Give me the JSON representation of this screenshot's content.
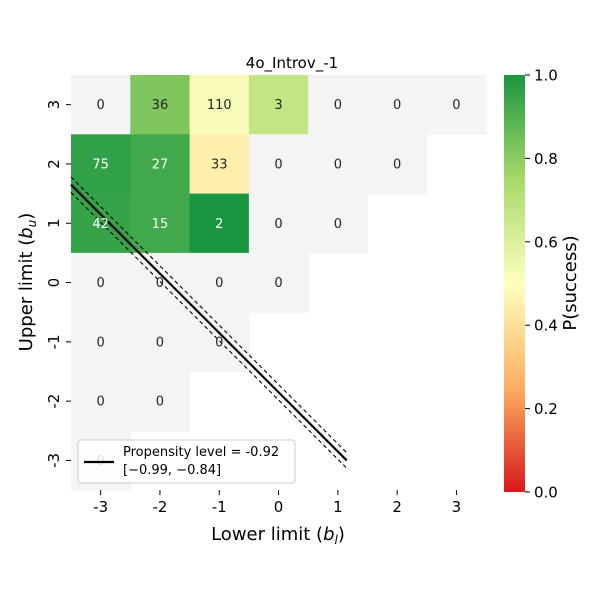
{
  "chart_data": {
    "type": "heatmap",
    "title": "4o_Introv_-1",
    "x_categories": [
      "-3",
      "-2",
      "-1",
      "0",
      "1",
      "2",
      "3"
    ],
    "y_categories": [
      "3",
      "2",
      "1",
      "0",
      "-1",
      "-2",
      "-3"
    ],
    "xlabel_main": "Lower limit (",
    "xlabel_var": "b",
    "xlabel_sub": "l",
    "xlabel_end": ")",
    "ylabel_main": "Upper limit (",
    "ylabel_var": "b",
    "ylabel_sub": "u",
    "ylabel_end": ")",
    "cells": [
      {
        "x": "-3",
        "y": "3",
        "count": "0",
        "p": null
      },
      {
        "x": "-2",
        "y": "3",
        "count": "36",
        "p": 0.82
      },
      {
        "x": "-1",
        "y": "3",
        "count": "110",
        "p": 0.52
      },
      {
        "x": "0",
        "y": "3",
        "count": "3",
        "p": 0.67
      },
      {
        "x": "1",
        "y": "3",
        "count": "0",
        "p": null
      },
      {
        "x": "2",
        "y": "3",
        "count": "0",
        "p": null
      },
      {
        "x": "3",
        "y": "3",
        "count": "0",
        "p": null
      },
      {
        "x": "-3",
        "y": "2",
        "count": "75",
        "p": 0.96
      },
      {
        "x": "-2",
        "y": "2",
        "count": "27",
        "p": 0.93
      },
      {
        "x": "-1",
        "y": "2",
        "count": "33",
        "p": 0.45
      },
      {
        "x": "0",
        "y": "2",
        "count": "0",
        "p": null
      },
      {
        "x": "1",
        "y": "2",
        "count": "0",
        "p": null
      },
      {
        "x": "2",
        "y": "2",
        "count": "0",
        "p": null
      },
      {
        "x": "-3",
        "y": "1",
        "count": "42",
        "p": 0.95
      },
      {
        "x": "-2",
        "y": "1",
        "count": "15",
        "p": 0.93
      },
      {
        "x": "-1",
        "y": "1",
        "count": "2",
        "p": 1.0
      },
      {
        "x": "0",
        "y": "1",
        "count": "0",
        "p": null
      },
      {
        "x": "1",
        "y": "1",
        "count": "0",
        "p": null
      },
      {
        "x": "-3",
        "y": "0",
        "count": "0",
        "p": null
      },
      {
        "x": "-2",
        "y": "0",
        "count": "0",
        "p": null
      },
      {
        "x": "-1",
        "y": "0",
        "count": "0",
        "p": null
      },
      {
        "x": "0",
        "y": "0",
        "count": "0",
        "p": null
      },
      {
        "x": "-3",
        "y": "-1",
        "count": "0",
        "p": null
      },
      {
        "x": "-2",
        "y": "-1",
        "count": "0",
        "p": null
      },
      {
        "x": "-1",
        "y": "-1",
        "count": "0",
        "p": null
      },
      {
        "x": "-3",
        "y": "-2",
        "count": "0",
        "p": null
      },
      {
        "x": "-2",
        "y": "-2",
        "count": "0",
        "p": null
      },
      {
        "x": "-3",
        "y": "-3",
        "count": "0",
        "p": null
      }
    ],
    "empty_cell_color": "#f4f4f4",
    "colorbar": {
      "label": "P(success)",
      "min": 0.0,
      "max": 1.0,
      "ticks": [
        "0.0",
        "0.2",
        "0.4",
        "0.6",
        "0.8",
        "1.0"
      ],
      "tick_values": [
        0.0,
        0.2,
        0.4,
        0.6,
        0.8,
        1.0
      ],
      "colors": [
        "#d7191c",
        "#fdae61",
        "#ffffbf",
        "#a6d96a",
        "#1a9641"
      ]
    },
    "propensity_line": {
      "x": [
        -3.5,
        1.15
      ],
      "y": [
        1.65,
        -3.0
      ],
      "ci_offset": 0.13,
      "color": "#000000"
    },
    "legend": {
      "placement": "lower-left",
      "line1": "Propensity level = -0.92",
      "line2": "[−0.99, −0.84]"
    }
  }
}
